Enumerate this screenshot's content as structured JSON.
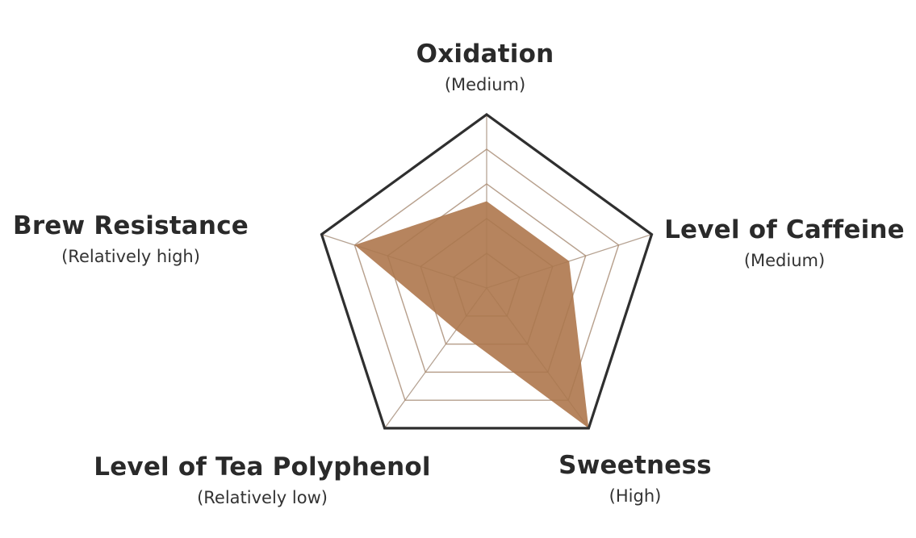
{
  "chart_data": {
    "type": "radar",
    "title": "",
    "levels": 5,
    "max": 5,
    "axes": [
      {
        "name": "Oxidation",
        "level": "(Medium)",
        "value": 2.5
      },
      {
        "name": "Level of Caffeine",
        "level": "(Medium)",
        "value": 2.5
      },
      {
        "name": "Sweetness",
        "level": "(High)",
        "value": 5
      },
      {
        "name": "Level of Tea Polyphenol",
        "level": "(Relatively low)",
        "value": 1.5
      },
      {
        "name": "Brew Resistance",
        "level": "(Relatively high)",
        "value": 4
      }
    ],
    "colors": {
      "fill": "#b07a50",
      "fill_opacity": 0.92,
      "outer_border": "#2f2f2f",
      "grid": "#cfcfcf",
      "spokes": "#c8c8c8"
    },
    "grid": true,
    "legend": "none"
  }
}
